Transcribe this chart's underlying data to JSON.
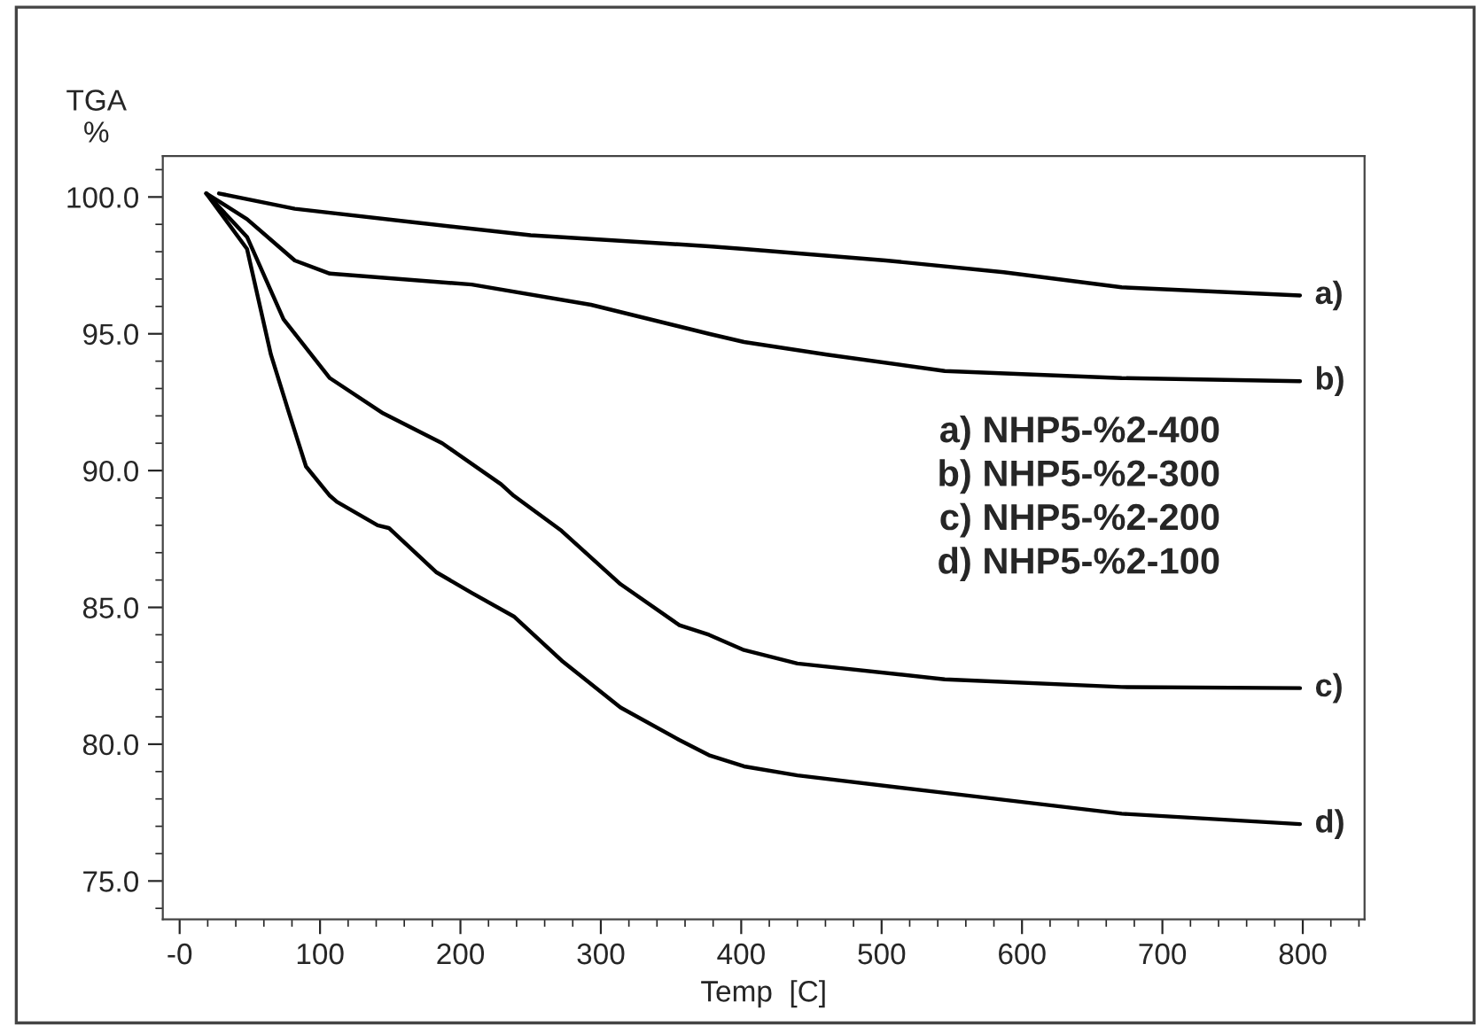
{
  "chart_data": {
    "type": "line",
    "xlabel": "Temp  [C]",
    "ylabel": "TGA\n%",
    "xlim": [
      -12,
      844
    ],
    "ylim": [
      73.6,
      101.5
    ],
    "xticks": [
      {
        "value": 0,
        "label": "-0"
      },
      100,
      200,
      300,
      400,
      500,
      600,
      700,
      800
    ],
    "yticks": [
      {
        "value": 75,
        "label": "75.0"
      },
      {
        "value": 80,
        "label": "80.0"
      },
      {
        "value": 85,
        "label": "85.0"
      },
      {
        "value": 90,
        "label": "90.0"
      },
      {
        "value": 95,
        "label": "95.0"
      },
      {
        "value": 100,
        "label": "100.0"
      }
    ],
    "grid": false,
    "legend": false,
    "marker": "none",
    "line_style": "solid",
    "series": [
      {
        "name": "a)",
        "color": "#000000",
        "x": [
          28,
          82,
          166,
          250,
          377,
          402,
          503,
          587,
          671,
          798
        ],
        "values": [
          100.13,
          99.57,
          99.08,
          98.6,
          98.2,
          98.1,
          97.68,
          97.25,
          96.7,
          96.4
        ]
      },
      {
        "name": "b)",
        "color": "#000000",
        "x": [
          19,
          48,
          82,
          107,
          208,
          293,
          377,
          402,
          461,
          545,
          671,
          798
        ],
        "values": [
          100.13,
          99.19,
          97.68,
          97.2,
          96.8,
          96.06,
          95.0,
          94.7,
          94.24,
          93.64,
          93.38,
          93.27
        ]
      },
      {
        "name": "c)",
        "color": "#000000",
        "x": [
          19,
          48,
          74,
          107,
          145,
          187,
          229,
          238,
          272,
          314,
          356,
          377,
          402,
          440,
          545,
          671,
          798
        ],
        "values": [
          100.13,
          98.54,
          95.53,
          93.38,
          92.09,
          91.0,
          89.5,
          89.08,
          87.8,
          85.85,
          84.35,
          84.0,
          83.44,
          82.95,
          82.37,
          82.09,
          82.05
        ]
      },
      {
        "name": "d)",
        "color": "#000000",
        "x": [
          19,
          48,
          65,
          78,
          90,
          107,
          112,
          141,
          149,
          183,
          208,
          238,
          272,
          314,
          356,
          377,
          402,
          440,
          545,
          671,
          798
        ],
        "values": [
          100.13,
          98.1,
          94.24,
          92.09,
          90.15,
          89.08,
          88.86,
          88.0,
          87.9,
          86.28,
          85.53,
          84.67,
          83.06,
          81.34,
          80.15,
          79.6,
          79.19,
          78.86,
          78.22,
          77.46,
          77.08
        ]
      }
    ],
    "annotations": [
      "a) NHP5-%2-400",
      "b) NHP5-%2-300",
      "c) NHP5-%2-200",
      "d) NHP5-%2-100"
    ]
  }
}
